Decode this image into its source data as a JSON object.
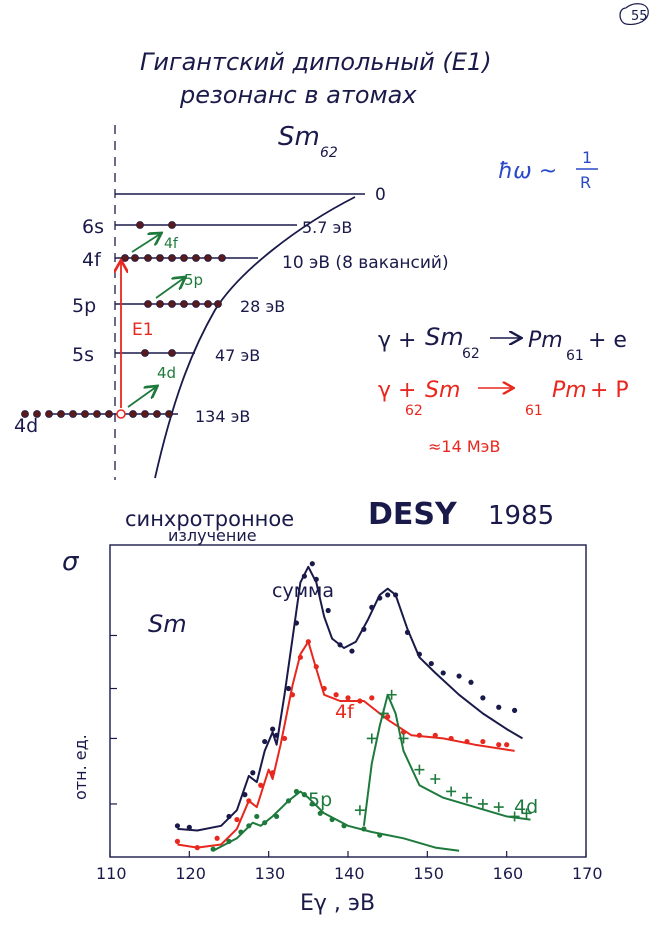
{
  "page_number": "55",
  "title_line1": "Гигантский дипольный (E1)",
  "title_line2": "резонанс в атомах",
  "element": "Sm",
  "element_z": "62",
  "hbar_formula": {
    "lhs": "ħω ~",
    "num": "1",
    "den": "R"
  },
  "levels": [
    {
      "name": "6s",
      "energy": "5.7 эВ"
    },
    {
      "name": "4f",
      "energy": "10 эВ (8 вакансий)"
    },
    {
      "name": "5p",
      "energy": "28 эВ"
    },
    {
      "name": "5s",
      "energy": "47 эВ"
    },
    {
      "name": "4d",
      "energy": "134 эВ"
    }
  ],
  "zero_label": "0",
  "transition_labels": {
    "e1": "E1",
    "to_4f": "4f",
    "to_5p": "5p",
    "to_4d": "4d"
  },
  "reaction1": {
    "lhs": "γ +",
    "sm": "Sm",
    "sm_z": "62",
    "arrow": "⟶",
    "pm": "Pm",
    "pm_z": "61",
    "rhs": "+ e"
  },
  "reaction2": {
    "lhs": "γ +",
    "sm_z": "62",
    "sm": "Sm",
    "arrow": "⟶",
    "pm_z": "61",
    "pm": "Pm",
    "rhs": "+ P"
  },
  "mev_note": "≈14 МэВ",
  "sync_line1": "синхротронное",
  "sync_line2": "излучение",
  "desy": "DESY",
  "year": "1985",
  "colors": {
    "ink": "#1a1a4a",
    "red": "#e8281e",
    "green": "#1e7a3c"
  },
  "chart_data": {
    "type": "line",
    "ylabel": "σ",
    "ylabel_units": "отн. ед.",
    "xlabel": "Eγ , эВ",
    "panel_label": "Sm",
    "xlim": [
      110,
      170
    ],
    "ylim": [
      0,
      10
    ],
    "x_ticks": [
      "110",
      "120",
      "130",
      "140",
      "150",
      "160",
      "170"
    ],
    "series": [
      {
        "name": "сумма",
        "color": "#1a1a4a",
        "curve": [
          [
            118.5,
            0.9
          ],
          [
            121,
            0.85
          ],
          [
            124,
            1.0
          ],
          [
            126,
            1.5
          ],
          [
            127.5,
            2.6
          ],
          [
            128.5,
            2.4
          ],
          [
            129.5,
            3.4
          ],
          [
            130.5,
            4.0
          ],
          [
            131,
            3.6
          ],
          [
            132,
            5.2
          ],
          [
            133,
            7.0
          ],
          [
            134,
            8.8
          ],
          [
            135,
            9.3
          ],
          [
            136,
            8.8
          ],
          [
            137,
            7.7
          ],
          [
            138,
            7.0
          ],
          [
            139.5,
            6.7
          ],
          [
            141,
            6.9
          ],
          [
            142.5,
            7.6
          ],
          [
            144,
            8.4
          ],
          [
            145,
            8.6
          ],
          [
            146,
            8.4
          ],
          [
            147.5,
            7.3
          ],
          [
            149,
            6.4
          ],
          [
            151,
            5.9
          ],
          [
            154,
            5.2
          ],
          [
            157,
            4.6
          ],
          [
            160,
            4.1
          ],
          [
            162,
            3.8
          ]
        ],
        "points": [
          [
            118.5,
            1.0
          ],
          [
            120,
            0.95
          ],
          [
            125,
            1.3
          ],
          [
            127,
            2.0
          ],
          [
            128,
            2.7
          ],
          [
            129.5,
            3.7
          ],
          [
            130.5,
            4.1
          ],
          [
            131,
            3.9
          ],
          [
            132.5,
            5.4
          ],
          [
            133.5,
            7.5
          ],
          [
            134.5,
            9.0
          ],
          [
            135.5,
            9.4
          ],
          [
            136,
            8.9
          ],
          [
            137.5,
            7.9
          ],
          [
            139,
            6.8
          ],
          [
            140.5,
            6.6
          ],
          [
            142,
            7.3
          ],
          [
            143,
            8.0
          ],
          [
            144,
            8.3
          ],
          [
            145,
            8.4
          ],
          [
            146,
            8.4
          ],
          [
            147.5,
            7.2
          ],
          [
            149,
            6.5
          ],
          [
            150.5,
            6.2
          ],
          [
            152,
            5.9
          ],
          [
            154,
            5.8
          ],
          [
            155.5,
            5.6
          ],
          [
            157,
            5.1
          ],
          [
            159,
            4.8
          ],
          [
            161,
            4.7
          ]
        ]
      },
      {
        "name": "4f",
        "color": "#e8281e",
        "curve": [
          [
            118.5,
            0.4
          ],
          [
            121,
            0.3
          ],
          [
            124,
            0.4
          ],
          [
            126,
            0.9
          ],
          [
            127.5,
            1.8
          ],
          [
            128.5,
            1.6
          ],
          [
            129.5,
            2.4
          ],
          [
            130,
            2.8
          ],
          [
            130.5,
            2.5
          ],
          [
            131.5,
            3.6
          ],
          [
            133,
            5.5
          ],
          [
            134,
            6.5
          ],
          [
            135,
            6.9
          ],
          [
            135.8,
            6.2
          ],
          [
            137,
            5.2
          ],
          [
            139,
            5.0
          ],
          [
            142,
            5.0
          ],
          [
            145,
            4.4
          ],
          [
            148,
            3.9
          ],
          [
            152,
            3.8
          ],
          [
            156,
            3.6
          ],
          [
            161,
            3.4
          ]
        ],
        "points": [
          [
            118.5,
            0.5
          ],
          [
            121,
            0.3
          ],
          [
            123.5,
            0.6
          ],
          [
            126,
            1.2
          ],
          [
            127.5,
            1.8
          ],
          [
            129,
            2.3
          ],
          [
            130.5,
            2.7
          ],
          [
            132,
            3.8
          ],
          [
            133,
            5.2
          ],
          [
            134,
            6.4
          ],
          [
            135,
            6.9
          ],
          [
            136,
            6.1
          ],
          [
            137,
            5.4
          ],
          [
            138.5,
            5.2
          ],
          [
            140,
            5.1
          ],
          [
            141.5,
            5.0
          ],
          [
            143,
            5.1
          ],
          [
            145,
            4.5
          ],
          [
            147,
            4.0
          ],
          [
            149,
            3.9
          ],
          [
            151,
            3.9
          ],
          [
            153,
            3.8
          ],
          [
            155,
            3.7
          ],
          [
            157,
            3.7
          ],
          [
            159,
            3.6
          ],
          [
            160,
            3.6
          ]
        ]
      },
      {
        "name": "5p",
        "color": "#1e7a3c",
        "curve": [
          [
            123,
            0.2
          ],
          [
            126,
            0.6
          ],
          [
            128,
            1.1
          ],
          [
            129,
            1.0
          ],
          [
            130.5,
            1.3
          ],
          [
            132.5,
            1.8
          ],
          [
            134,
            2.1
          ],
          [
            135,
            1.9
          ],
          [
            137,
            1.4
          ],
          [
            140,
            1.0
          ],
          [
            143,
            0.8
          ],
          [
            147,
            0.6
          ],
          [
            151,
            0.3
          ],
          [
            154,
            0.2
          ]
        ],
        "points": [
          [
            123,
            0.25
          ],
          [
            125,
            0.5
          ],
          [
            126.5,
            0.8
          ],
          [
            127.5,
            1.0
          ],
          [
            128.5,
            1.3
          ],
          [
            129.5,
            1.1
          ],
          [
            131,
            1.3
          ],
          [
            132.5,
            1.8
          ],
          [
            133.5,
            2.1
          ],
          [
            134.5,
            2.0
          ],
          [
            135.5,
            1.7
          ],
          [
            136.5,
            1.4
          ],
          [
            138,
            1.2
          ],
          [
            139.5,
            1.0
          ],
          [
            142,
            0.9
          ],
          [
            144,
            0.7
          ]
        ]
      },
      {
        "name": "4d",
        "color": "#1e7a3c",
        "curve": [
          [
            142,
            1.0
          ],
          [
            143,
            3.0
          ],
          [
            144,
            4.2
          ],
          [
            145,
            5.2
          ],
          [
            146,
            4.6
          ],
          [
            147,
            3.4
          ],
          [
            149,
            2.3
          ],
          [
            152,
            1.9
          ],
          [
            156,
            1.6
          ],
          [
            160,
            1.3
          ],
          [
            163,
            1.2
          ]
        ],
        "points": [
          [
            141.5,
            1.5
          ],
          [
            143,
            3.8
          ],
          [
            144.5,
            4.6
          ],
          [
            145.5,
            5.2
          ],
          [
            147,
            3.8
          ],
          [
            149,
            2.8
          ],
          [
            151,
            2.5
          ],
          [
            153,
            2.1
          ],
          [
            155,
            1.9
          ],
          [
            157,
            1.7
          ],
          [
            159,
            1.6
          ],
          [
            161,
            1.3
          ],
          [
            162.5,
            1.4
          ]
        ]
      }
    ]
  }
}
